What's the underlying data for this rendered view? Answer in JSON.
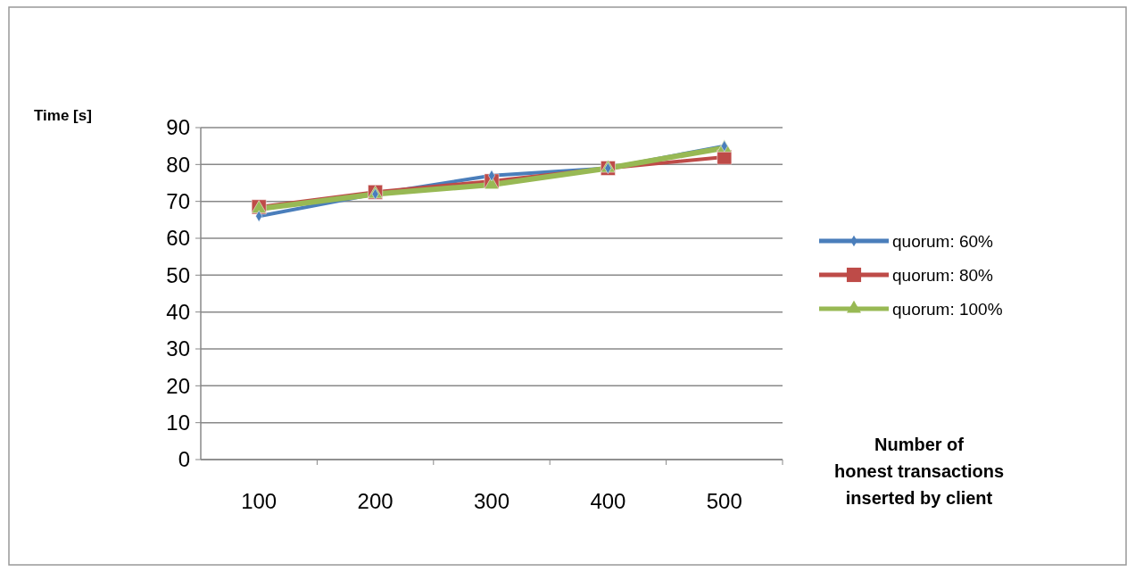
{
  "chart_data": {
    "type": "line",
    "xlabel": "Number of\nhonest transactions\ninserted by client",
    "ylabel": "Time [s]",
    "categories": [
      "100",
      "200",
      "300",
      "400",
      "500"
    ],
    "series": [
      {
        "name": "quorum: 60%",
        "color": "#4a7ebb",
        "marker": "diamond",
        "values": [
          66,
          72,
          77,
          79,
          85
        ]
      },
      {
        "name": "quorum: 80%",
        "color": "#be4b48",
        "marker": "square",
        "values": [
          68.5,
          72.5,
          75.5,
          79,
          82
        ]
      },
      {
        "name": "quorum: 100%",
        "color": "#98b954",
        "marker": "triangle",
        "values": [
          68,
          72,
          74.5,
          79,
          84.5
        ]
      }
    ],
    "ylim": [
      0,
      90
    ],
    "yticks": [
      0,
      10,
      20,
      30,
      40,
      50,
      60,
      70,
      80,
      90
    ],
    "grid": "y",
    "legend": "right"
  }
}
